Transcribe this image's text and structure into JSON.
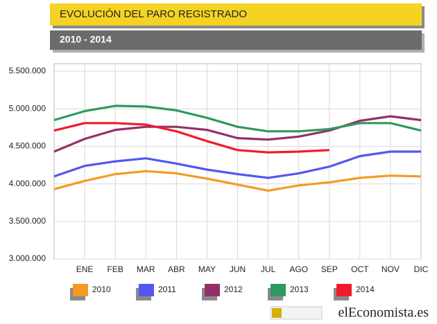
{
  "chart_data": {
    "type": "line",
    "title": "EVOLUCIÓN DEL PARO REGISTRADO",
    "subtitle": "2010 - 2014",
    "brand": "elEconomista.es",
    "categories": [
      null,
      "ENE",
      "FEB",
      "MAR",
      "ABR",
      "MAY",
      "JUN",
      "JUL",
      "AGO",
      "SEP",
      "OCT",
      "NOV",
      "DIC"
    ],
    "series": [
      {
        "name": "2010",
        "color": "#f59a23",
        "values": [
          3930000,
          4040000,
          4130000,
          4170000,
          4140000,
          4070000,
          3990000,
          3910000,
          3980000,
          4020000,
          4080000,
          4110000,
          4100000
        ]
      },
      {
        "name": "2011",
        "color": "#5555ee",
        "values": [
          4100000,
          4240000,
          4300000,
          4340000,
          4270000,
          4190000,
          4130000,
          4080000,
          4140000,
          4230000,
          4370000,
          4430000,
          4430000
        ]
      },
      {
        "name": "2012",
        "color": "#943068",
        "values": [
          4430000,
          4600000,
          4720000,
          4760000,
          4760000,
          4720000,
          4610000,
          4590000,
          4630000,
          4710000,
          4840000,
          4900000,
          4850000
        ]
      },
      {
        "name": "2013",
        "color": "#2e9a5e",
        "values": [
          4850000,
          4970000,
          5040000,
          5030000,
          4980000,
          4880000,
          4760000,
          4700000,
          4700000,
          4730000,
          4810000,
          4810000,
          4710000
        ]
      },
      {
        "name": "2014",
        "color": "#ee1c2e",
        "values": [
          4710000,
          4810000,
          4810000,
          4790000,
          4700000,
          4570000,
          4450000,
          4420000,
          4430000,
          4450000,
          null,
          null,
          null
        ]
      }
    ],
    "ylim": [
      3000000,
      5500000
    ],
    "yticks": [
      {
        "value": 3000000,
        "label": "3.000.000"
      },
      {
        "value": 3500000,
        "label": "3.500.000"
      },
      {
        "value": 4000000,
        "label": "4.000.000"
      },
      {
        "value": 4500000,
        "label": "4.500.000"
      },
      {
        "value": 5000000,
        "label": "5.000.000"
      },
      {
        "value": 5500000,
        "label": "5.500.000"
      }
    ],
    "grid": true
  }
}
